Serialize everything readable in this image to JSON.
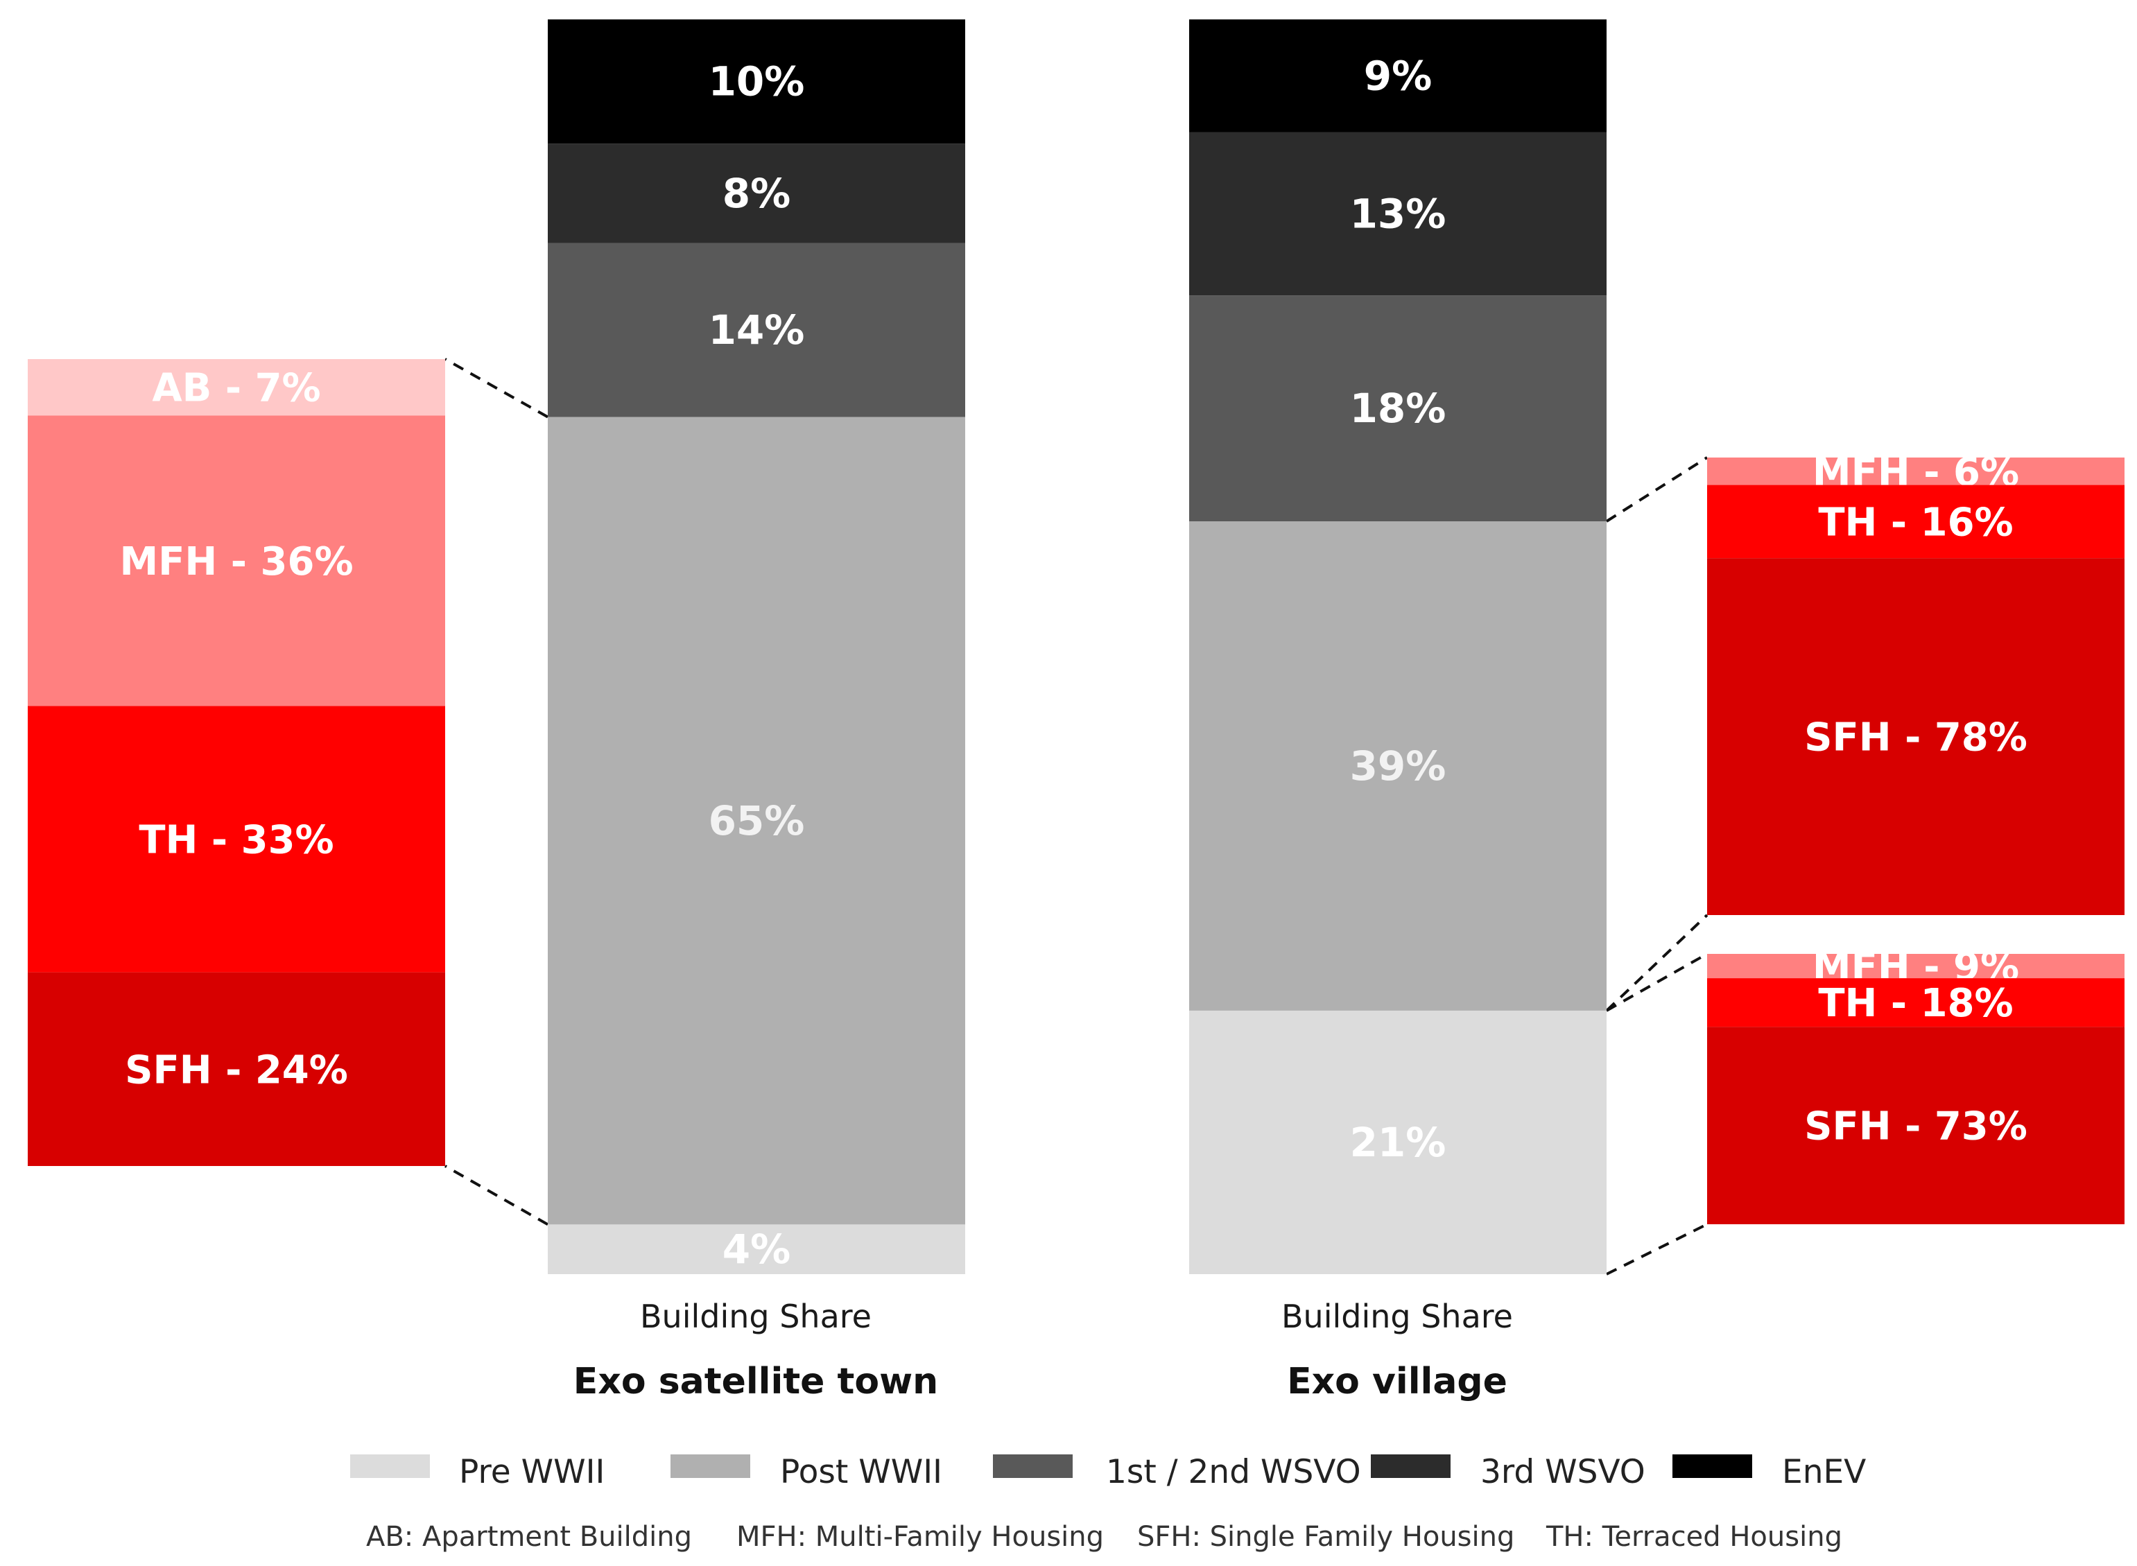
{
  "chart_data": {
    "type": "stacked-bar",
    "unit": "%",
    "xlabel": "Building Share",
    "stack_order": [
      "Pre WWII",
      "Post WWII",
      "1st / 2nd WSVO",
      "3rd WSVO",
      "EnEV"
    ],
    "colors": {
      "Pre WWII": "#dcdcdc",
      "Post WWII": "#b0b0b0",
      "1st / 2nd WSVO": "#595959",
      "3rd WSVO": "#2c2c2c",
      "EnEV": "#000000",
      "AB": "#ffc8c8",
      "MFH": "#ff8080",
      "TH": "#ff0000",
      "SFH": "#d70000"
    },
    "bars": [
      {
        "group": "Exo satellite town",
        "axis_label": "Building Share",
        "segments": [
          {
            "category": "Pre WWII",
            "value": 4,
            "label": "4%"
          },
          {
            "category": "Post WWII",
            "value": 65,
            "label": "65%"
          },
          {
            "category": "1st / 2nd WSVO",
            "value": 14,
            "label": "14%"
          },
          {
            "category": "3rd WSVO",
            "value": 8,
            "label": "8%"
          },
          {
            "category": "EnEV",
            "value": 10,
            "label": "10%"
          }
        ]
      },
      {
        "group": "Exo village",
        "axis_label": "Building Share",
        "segments": [
          {
            "category": "Pre WWII",
            "value": 21,
            "label": "21%"
          },
          {
            "category": "Post WWII",
            "value": 39,
            "label": "39%"
          },
          {
            "category": "1st / 2nd WSVO",
            "value": 18,
            "label": "18%"
          },
          {
            "category": "3rd WSVO",
            "value": 13,
            "label": "13%"
          },
          {
            "category": "EnEV",
            "value": 9,
            "label": "9%"
          }
        ]
      }
    ],
    "breakdowns": [
      {
        "bar": "Exo satellite town",
        "of_category": "Post WWII",
        "side": "left",
        "segments": [
          {
            "type": "AB",
            "value": 7,
            "label": "AB - 7%"
          },
          {
            "type": "MFH",
            "value": 36,
            "label": "MFH - 36%"
          },
          {
            "type": "TH",
            "value": 33,
            "label": "TH - 33%"
          },
          {
            "type": "SFH",
            "value": 24,
            "label": "SFH - 24%"
          }
        ]
      },
      {
        "bar": "Exo village",
        "of_category": "Post WWII",
        "side": "right",
        "segments": [
          {
            "type": "MFH",
            "value": 6,
            "label": "MFH - 6%"
          },
          {
            "type": "TH",
            "value": 16,
            "label": "TH - 16%"
          },
          {
            "type": "SFH",
            "value": 78,
            "label": "SFH - 78%"
          }
        ]
      },
      {
        "bar": "Exo village",
        "of_category": "Pre WWII",
        "side": "right",
        "segments": [
          {
            "type": "MFH",
            "value": 9,
            "label": "MFH - 9%"
          },
          {
            "type": "TH",
            "value": 18,
            "label": "TH - 18%"
          },
          {
            "type": "SFH",
            "value": 73,
            "label": "SFH - 73%"
          }
        ]
      }
    ],
    "legend": [
      {
        "key": "Pre WWII",
        "label": "Pre WWII"
      },
      {
        "key": "Post WWII",
        "label": "Post WWII"
      },
      {
        "key": "1st / 2nd WSVO",
        "label": "1st / 2nd  WSVO"
      },
      {
        "key": "3rd WSVO",
        "label": "3rd WSVO"
      },
      {
        "key": "EnEV",
        "label": "EnEV"
      }
    ],
    "abbreviations": [
      "AB: Apartment Building",
      "MFH: Multi-Family Housing",
      "SFH: Single Family Housing",
      "TH: Terraced Housing"
    ]
  }
}
